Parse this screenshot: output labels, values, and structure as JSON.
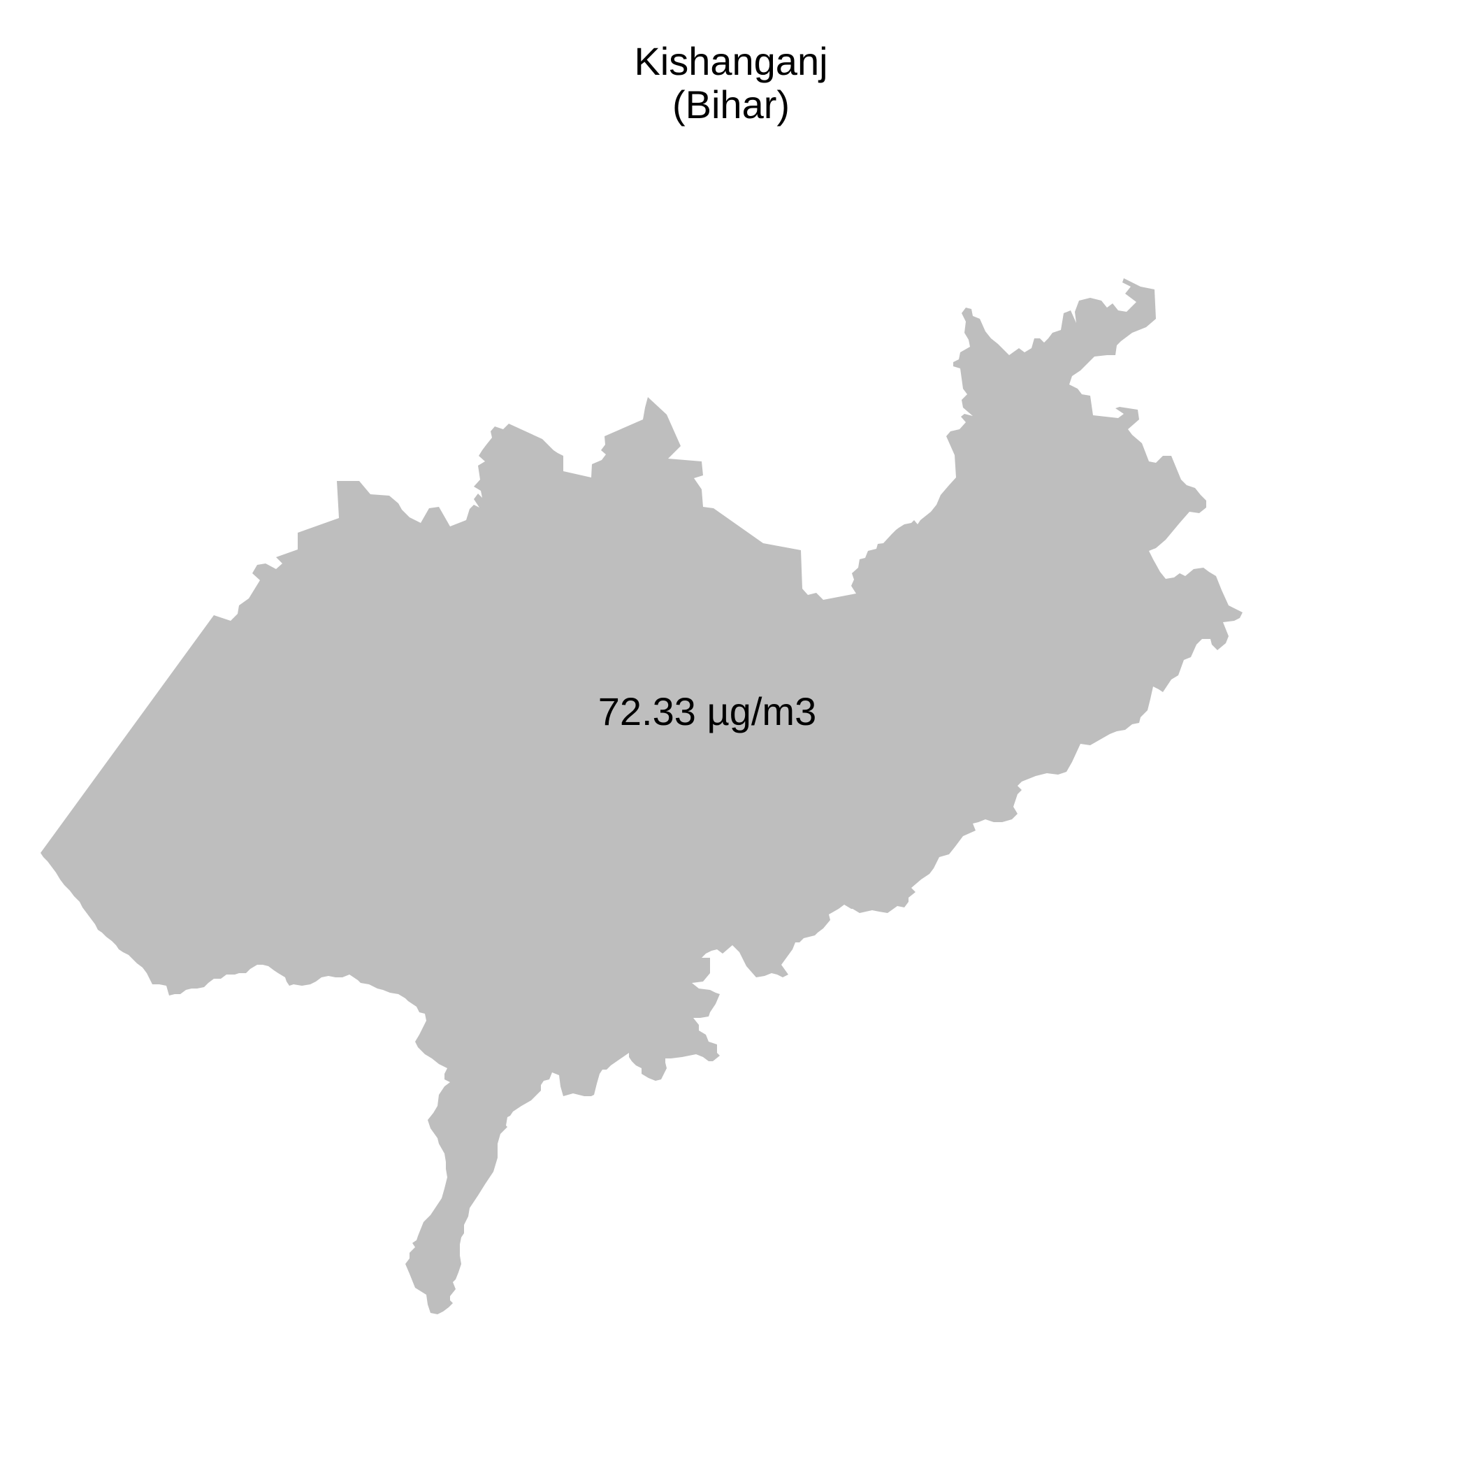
{
  "title": {
    "line1": "Kishanganj",
    "line2": "(Bihar)"
  },
  "region": {
    "name": "Kishanganj",
    "state": "Bihar",
    "fill_color": "#bebebe"
  },
  "value_label": "72.33 µg/m3",
  "background_color": "#ffffff"
}
